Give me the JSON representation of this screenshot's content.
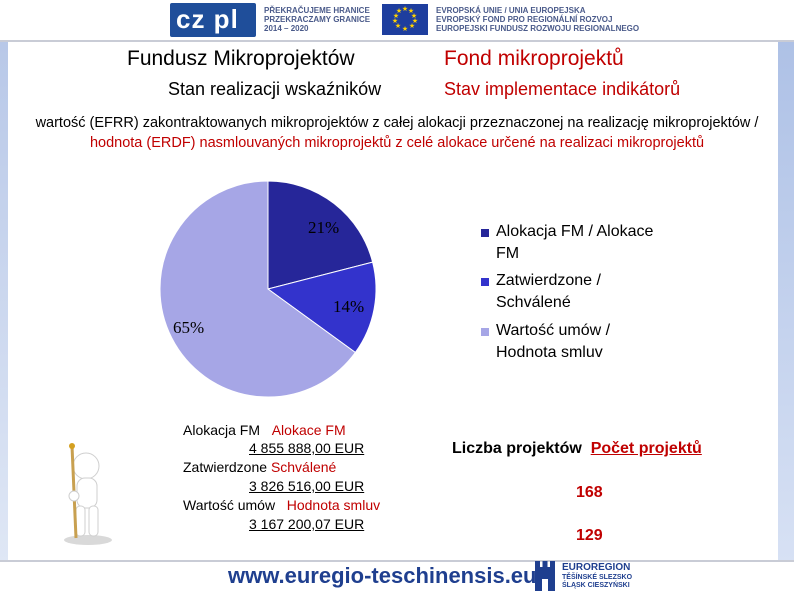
{
  "header": {
    "logo_text": "cz pl",
    "program_lines": [
      "PŘEKRAČUJEME HRANICE",
      "PRZEKRACZAMY GRANICE",
      "2014 – 2020"
    ],
    "eu_lines": [
      "EVROPSKÁ UNIE / UNIA EUROPEJSKA",
      "EVROPSKÝ FOND PRO REGIONÁLNÍ ROZVOJ",
      "EUROPEJSKI FUNDUSZ ROZWOJU REGIONALNEGO"
    ]
  },
  "title": {
    "pl": "Fundusz Mikroprojektów",
    "cz": "Fond mikroprojektů"
  },
  "subtitle": {
    "pl": "Stan realizacji wskaźników",
    "cz": "Stav implementace indikátorů"
  },
  "description": {
    "part1": "wartość (EFRR) zakontraktowanych mikroprojektów z całej alokacji przeznaczonej na realizację mikroprojektów / ",
    "part2": "hodnota (ERDF) nasmlouvaných mikroprojektů z celé alokace určené na realizaci mikroprojektů"
  },
  "colors": {
    "slice1": "#262699",
    "slice2": "#3333cc",
    "slice3": "#a6a6e6",
    "accent_red": "#c00000"
  },
  "chart_data": {
    "type": "pie",
    "labels": [
      "Alokacja FM / Alokace FM",
      "Zatwierdzone / Schválené",
      "Wartość umów / Hodnota smluv"
    ],
    "values": [
      21,
      14,
      65
    ],
    "value_labels": [
      "21%",
      "14%",
      "65%"
    ],
    "legend_lines": [
      [
        "Alokacja FM / Alokace",
        "FM"
      ],
      [
        "Zatwierdzone /",
        "Schválené"
      ],
      [
        "Wartość umów /",
        "Hodnota smluv"
      ]
    ],
    "legend": "right"
  },
  "amounts": {
    "alloc_pl": "Alokacja FM",
    "alloc_cz": "Alokace FM",
    "alloc_val": "4 855 888,00 EUR",
    "appr_pl": "Zatwierdzone",
    "appr_cz": "Schválené",
    "appr_val": "3 826 516,00 EUR",
    "contr_pl": "Wartość umów",
    "contr_cz": "Hodnota smluv",
    "contr_val": "3 167 200,07 EUR"
  },
  "projects": {
    "label_pl": "Liczba projektów",
    "label_cz": "Počet projektů",
    "count1": "168",
    "count2": "129"
  },
  "footer": {
    "url": "www.euregio-teschinensis.eu",
    "euroregion_lines": [
      "EUROREGION",
      "TĚŠÍNSKÉ SLEZSKO",
      "ŚLĄSK CIESZYŃSKI"
    ]
  }
}
